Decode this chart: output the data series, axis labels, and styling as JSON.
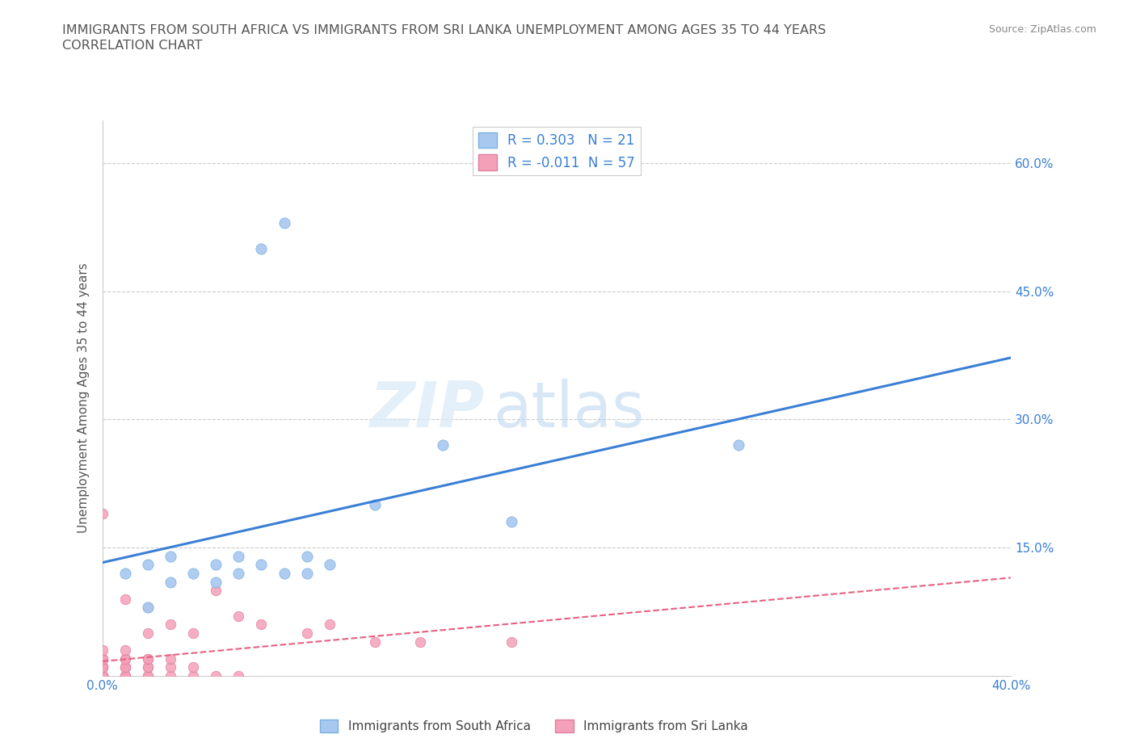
{
  "title_line1": "IMMIGRANTS FROM SOUTH AFRICA VS IMMIGRANTS FROM SRI LANKA UNEMPLOYMENT AMONG AGES 35 TO 44 YEARS",
  "title_line2": "CORRELATION CHART",
  "source": "Source: ZipAtlas.com",
  "ylabel": "Unemployment Among Ages 35 to 44 years",
  "xlim": [
    0.0,
    0.4
  ],
  "ylim": [
    0.0,
    0.65
  ],
  "ytick_positions": [
    0.15,
    0.3,
    0.45,
    0.6
  ],
  "ytick_labels": [
    "15.0%",
    "30.0%",
    "45.0%",
    "60.0%"
  ],
  "xtick_positions": [
    0.0,
    0.1,
    0.2,
    0.3,
    0.4
  ],
  "xtick_labels": [
    "0.0%",
    "",
    "",
    "",
    "40.0%"
  ],
  "south_africa_color": "#a8c8f0",
  "south_africa_edge": "#7ab0e0",
  "sri_lanka_color": "#f4a0b8",
  "sri_lanka_edge": "#e080a0",
  "trend_sa_color": "#3a7fd5",
  "trend_sl_color": "#e86080",
  "R_sa": 0.303,
  "N_sa": 21,
  "R_sl": -0.011,
  "N_sl": 57,
  "legend_label_sa": "Immigrants from South Africa",
  "legend_label_sl": "Immigrants from Sri Lanka",
  "watermark": "ZIPatlas",
  "sa_x": [
    0.01,
    0.02,
    0.02,
    0.03,
    0.03,
    0.04,
    0.05,
    0.05,
    0.06,
    0.06,
    0.07,
    0.07,
    0.08,
    0.08,
    0.09,
    0.09,
    0.1,
    0.12,
    0.15,
    0.18,
    0.28
  ],
  "sa_y": [
    0.12,
    0.08,
    0.13,
    0.11,
    0.14,
    0.12,
    0.11,
    0.13,
    0.12,
    0.14,
    0.13,
    0.5,
    0.12,
    0.53,
    0.12,
    0.14,
    0.13,
    0.2,
    0.27,
    0.18,
    0.27
  ],
  "sl_x": [
    0.0,
    0.0,
    0.0,
    0.0,
    0.0,
    0.0,
    0.0,
    0.0,
    0.0,
    0.0,
    0.0,
    0.0,
    0.0,
    0.0,
    0.0,
    0.0,
    0.0,
    0.0,
    0.0,
    0.0,
    0.0,
    0.01,
    0.01,
    0.01,
    0.01,
    0.01,
    0.01,
    0.01,
    0.01,
    0.01,
    0.01,
    0.01,
    0.02,
    0.02,
    0.02,
    0.02,
    0.02,
    0.02,
    0.02,
    0.02,
    0.03,
    0.03,
    0.03,
    0.03,
    0.04,
    0.04,
    0.04,
    0.05,
    0.05,
    0.06,
    0.06,
    0.07,
    0.09,
    0.1,
    0.12,
    0.14,
    0.18
  ],
  "sl_y": [
    0.0,
    0.0,
    0.0,
    0.0,
    0.0,
    0.0,
    0.0,
    0.0,
    0.01,
    0.01,
    0.01,
    0.02,
    0.0,
    0.0,
    0.0,
    0.01,
    0.01,
    0.02,
    0.02,
    0.03,
    0.19,
    0.0,
    0.0,
    0.0,
    0.0,
    0.01,
    0.01,
    0.01,
    0.02,
    0.02,
    0.03,
    0.09,
    0.0,
    0.0,
    0.01,
    0.01,
    0.02,
    0.02,
    0.05,
    0.08,
    0.0,
    0.01,
    0.02,
    0.06,
    0.0,
    0.01,
    0.05,
    0.0,
    0.1,
    0.0,
    0.07,
    0.06,
    0.05,
    0.06,
    0.04,
    0.04,
    0.04
  ]
}
